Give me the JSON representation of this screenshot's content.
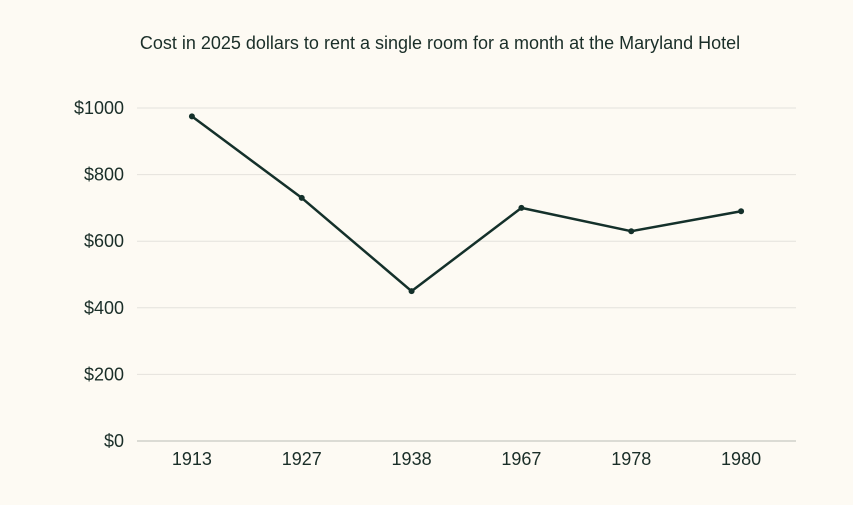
{
  "chart_data": {
    "type": "line",
    "title": "Cost in 2025 dollars to rent a single room for a month at the Maryland Hotel",
    "xlabel": "",
    "ylabel": "",
    "categories": [
      "1913",
      "1927",
      "1938",
      "1967",
      "1978",
      "1980"
    ],
    "series": [
      {
        "values": [
          975,
          730,
          450,
          700,
          630,
          690
        ]
      }
    ],
    "ylim": [
      0,
      1000
    ],
    "yticks": [
      0,
      200,
      400,
      600,
      800,
      1000
    ],
    "ytick_labels": [
      "$0",
      "$200",
      "$400",
      "$600",
      "$800",
      "$1000"
    ],
    "grid": true,
    "line_color": "#14302a",
    "grid_color": "#e4e2dc",
    "background_color": "#fdfaf3"
  }
}
